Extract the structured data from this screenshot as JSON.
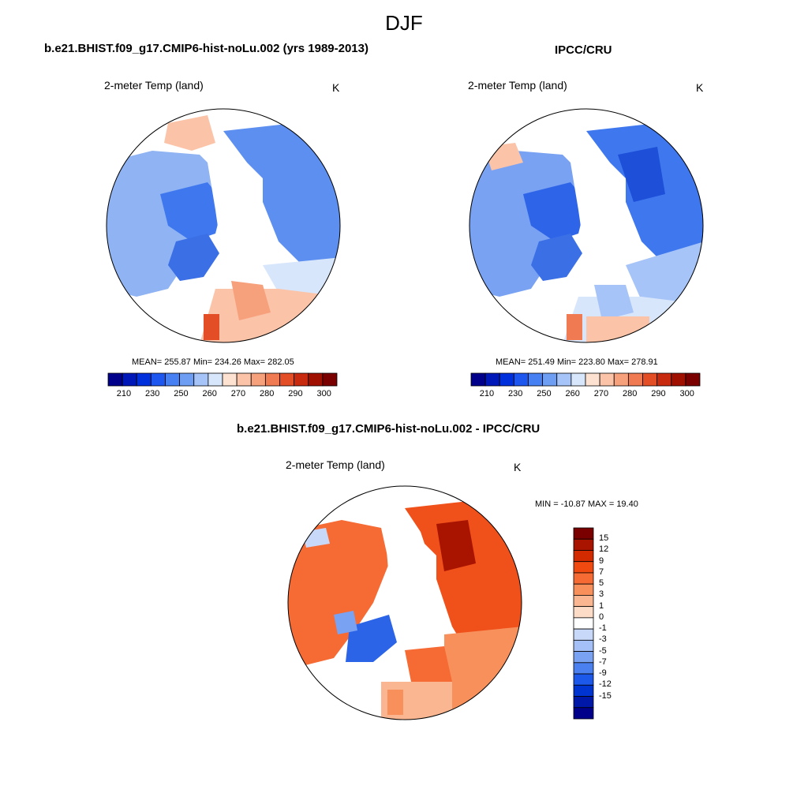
{
  "title": "DJF",
  "panels": [
    {
      "id": "model",
      "title": "b.e21.BHIST.f09_g17.CMIP6-hist-noLu.002 (yrs 1989-2013)",
      "variable": "2-meter Temp (land)",
      "units": "K",
      "stats": "MEAN= 255.87  Min= 234.26  Max= 282.05"
    },
    {
      "id": "obs",
      "title": "IPCC/CRU",
      "variable": "2-meter Temp (land)",
      "units": "K",
      "stats": "MEAN= 251.49  Min= 223.80  Max= 278.91"
    },
    {
      "id": "diff",
      "title": "b.e21.BHIST.f09_g17.CMIP6-hist-noLu.002 - IPCC/CRU",
      "variable": "2-meter Temp (land)",
      "units": "K",
      "stats": "MIN = -10.87 MAX =  19.40"
    }
  ],
  "colorbars": {
    "absolute": {
      "orientation": "horizontal",
      "tick_labels": [
        "210",
        "230",
        "250",
        "260",
        "270",
        "280",
        "290",
        "300"
      ],
      "colors": [
        "#00008b",
        "#0018b8",
        "#0030dc",
        "#1e56f0",
        "#4680f2",
        "#6e9ef4",
        "#a6c4f8",
        "#d8e6fb",
        "#fde2d2",
        "#fbc3a8",
        "#f7a07c",
        "#f07a52",
        "#e44e26",
        "#c82a10",
        "#a01000",
        "#7a0000"
      ]
    },
    "difference": {
      "orientation": "vertical",
      "tick_labels": [
        "15",
        "12",
        "9",
        "7",
        "5",
        "3",
        "1",
        "0",
        "-1",
        "-3",
        "-5",
        "-7",
        "-9",
        "-12",
        "-15"
      ],
      "colors": [
        "#7a0000",
        "#a81400",
        "#d42a00",
        "#f04a10",
        "#f66a34",
        "#f8905c",
        "#fab690",
        "#fcdcc6",
        "#ffffff",
        "#c8d8f8",
        "#a4c0f6",
        "#7aa2f2",
        "#4a80f0",
        "#1c58ea",
        "#0034d0",
        "#0018a8",
        "#00008b"
      ]
    }
  }
}
